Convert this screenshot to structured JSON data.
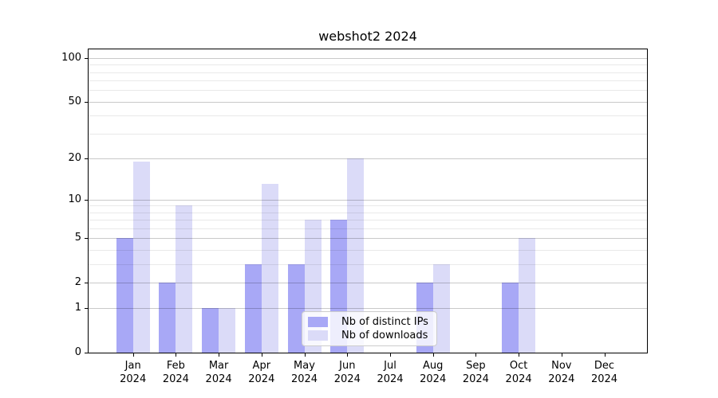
{
  "figure": {
    "title": "webshot2 2024"
  },
  "chart_data": {
    "type": "bar",
    "title": "webshot2 2024",
    "categories": [
      "Jan 2024",
      "Feb 2024",
      "Mar 2024",
      "Apr 2024",
      "May 2024",
      "Jun 2024",
      "Jul 2024",
      "Aug 2024",
      "Sep 2024",
      "Oct 2024",
      "Nov 2024",
      "Dec 2024"
    ],
    "series": [
      {
        "name": "Nb of distinct IPs",
        "color": "#a8a8f6",
        "values": [
          5,
          2,
          1,
          3,
          3,
          7,
          0,
          2,
          0,
          2,
          0,
          0
        ]
      },
      {
        "name": "Nb of downloads",
        "color": "#dbdbf8",
        "values": [
          19,
          9,
          1,
          13,
          7,
          20,
          0,
          3,
          0,
          5,
          0,
          0
        ]
      }
    ],
    "xlabel": "",
    "ylabel": "",
    "y_scale": "log1p",
    "ylim": [
      0,
      114
    ],
    "y_major_ticks": [
      0,
      1,
      2,
      5,
      10,
      20,
      50,
      100
    ],
    "y_minor_gridlines": [
      3,
      4,
      6,
      7,
      8,
      9,
      30,
      40,
      60,
      70,
      80,
      90
    ],
    "grid": "on",
    "legend_position": "lower center"
  },
  "colors": {
    "background": "#ffffff",
    "spine": "#000000",
    "major_grid": "rgba(0,0,0,0.21)",
    "minor_grid": "rgba(0,0,0,0.085)",
    "legend_border": "#cccccc",
    "legend_background": "rgba(255,255,255,0.8)",
    "text": "#000000"
  }
}
